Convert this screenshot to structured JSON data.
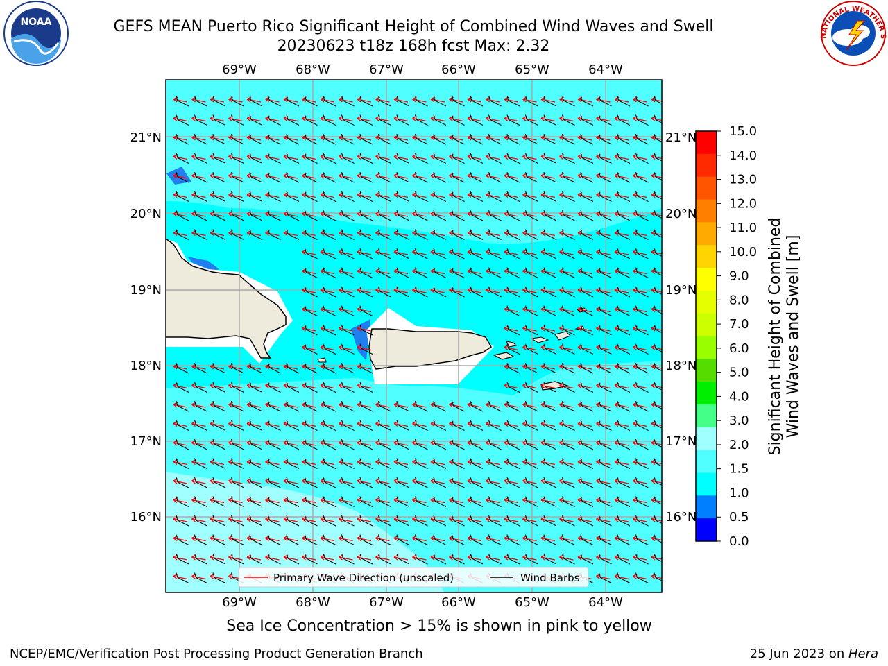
{
  "header": {
    "title_line1": "GEFS MEAN Puerto Rico Significant Height of Combined Wind Waves and Swell",
    "title_line2": "20230623 t18z 168h fcst   Max: 2.32"
  },
  "logos": {
    "noaa_text": "NOAA",
    "nws_text": "NATIONAL WEATHER SERVICE"
  },
  "map": {
    "lon_labels": [
      "69°W",
      "68°W",
      "67°W",
      "66°W",
      "65°W",
      "64°W"
    ],
    "lat_labels": [
      "21°N",
      "20°N",
      "19°N",
      "18°N",
      "17°N",
      "16°N"
    ],
    "legend": {
      "wave_direction": "Primary Wave Direction (unscaled)",
      "wind_barbs": "Wind Barbs"
    },
    "wave_color": "#ff0000",
    "ocean_color": "#00ffff",
    "land_color": "#eeeadc"
  },
  "colorbar": {
    "label_line1": "Significant Height of Combined",
    "label_line2": "Wind Waves and Swell [m]",
    "ticks": [
      "15.0",
      "14.0",
      "13.0",
      "12.0",
      "11.0",
      "10.0",
      "9.0",
      "8.0",
      "7.0",
      "6.0",
      "5.0",
      "4.0",
      "3.0",
      "2.0",
      "1.5",
      "1.0",
      "0.5",
      "0.0"
    ],
    "colors": [
      "#ff0000",
      "#ff2a00",
      "#ff5500",
      "#ff8000",
      "#ffaa00",
      "#ffd400",
      "#ffff00",
      "#e6ff00",
      "#ccff00",
      "#99ff00",
      "#55dd00",
      "#00ee00",
      "#44ff88",
      "#a0ffff",
      "#50ffff",
      "#00ffff",
      "#0080ff",
      "#0000ff"
    ]
  },
  "note": "Sea Ice Concentration > 15% is shown in pink to yellow",
  "footer": {
    "left": "NCEP/EMC/Verification Post Processing Product Generation Branch",
    "date": "25 Jun 2023 on ",
    "machine": "Hera"
  }
}
